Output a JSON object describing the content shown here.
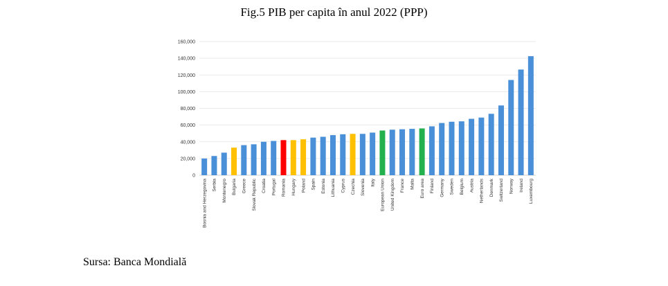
{
  "title": "Fig.5 PIB per capita în anul 2022 (PPP)",
  "source": "Sursa: Banca Mondială",
  "chart_data": {
    "type": "bar",
    "title": "",
    "xlabel": "",
    "ylabel": "",
    "ylim": [
      0,
      160000
    ],
    "yticks": [
      0,
      20000,
      40000,
      60000,
      80000,
      100000,
      120000,
      140000,
      160000
    ],
    "ytick_labels": [
      "0",
      "20,000",
      "40,000",
      "60,000",
      "80,000",
      "100,000",
      "120,000",
      "140,000",
      "160,000"
    ],
    "grid": true,
    "categories": [
      "Bosnia and Herzegovina",
      "Serbia",
      "Montenegro",
      "Bulgaria",
      "Greece",
      "Slovak Republic",
      "Croatia",
      "Portugal",
      "Romania",
      "Hungary",
      "Poland",
      "Spain",
      "Estonia",
      "Lithuania",
      "Cyprus",
      "Czechia",
      "Slovenia",
      "Italy",
      "European Union",
      "United Kingdom",
      "France",
      "Malta",
      "Euro area",
      "Finland",
      "Germany",
      "Sweden",
      "Belgium",
      "Austria",
      "Netherlands",
      "Denmark",
      "Switzerland",
      "Norway",
      "Ireland",
      "Luxembourg"
    ],
    "values": [
      20000,
      23000,
      27000,
      33000,
      36000,
      37000,
      40000,
      41000,
      42000,
      42000,
      43000,
      45000,
      46000,
      48000,
      49000,
      49500,
      49500,
      51000,
      53500,
      54500,
      55000,
      55500,
      56000,
      58500,
      62500,
      64000,
      64500,
      67500,
      69000,
      73500,
      83500,
      114000,
      126500,
      142500
    ],
    "colors": [
      "#4a90d9",
      "#4a90d9",
      "#4a90d9",
      "#ffc000",
      "#4a90d9",
      "#4a90d9",
      "#4a90d9",
      "#4a90d9",
      "#ff0000",
      "#ffc000",
      "#ffc000",
      "#4a90d9",
      "#4a90d9",
      "#4a90d9",
      "#4a90d9",
      "#ffc000",
      "#4a90d9",
      "#4a90d9",
      "#22b14c",
      "#4a90d9",
      "#4a90d9",
      "#4a90d9",
      "#22b14c",
      "#4a90d9",
      "#4a90d9",
      "#4a90d9",
      "#4a90d9",
      "#4a90d9",
      "#4a90d9",
      "#4a90d9",
      "#4a90d9",
      "#4a90d9",
      "#4a90d9",
      "#4a90d9"
    ]
  }
}
